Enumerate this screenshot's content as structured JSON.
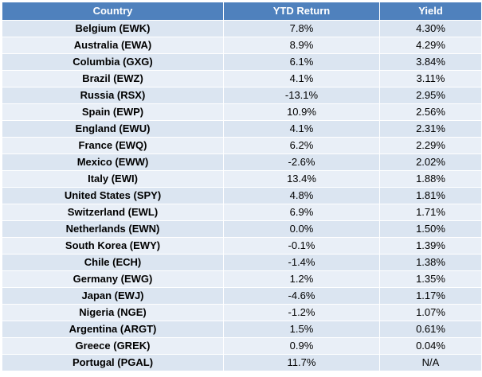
{
  "chart_data": {
    "type": "table",
    "columns": [
      "Country",
      "YTD Return",
      "Yield"
    ],
    "rows": [
      [
        "Belgium (EWK)",
        "7.8%",
        "4.30%"
      ],
      [
        "Australia (EWA)",
        "8.9%",
        "4.29%"
      ],
      [
        "Columbia (GXG)",
        "6.1%",
        "3.84%"
      ],
      [
        "Brazil (EWZ)",
        "4.1%",
        "3.11%"
      ],
      [
        "Russia (RSX)",
        "-13.1%",
        "2.95%"
      ],
      [
        "Spain (EWP)",
        "10.9%",
        "2.56%"
      ],
      [
        "England (EWU)",
        "4.1%",
        "2.31%"
      ],
      [
        "France (EWQ)",
        "6.2%",
        "2.29%"
      ],
      [
        "Mexico (EWW)",
        "-2.6%",
        "2.02%"
      ],
      [
        "Italy (EWI)",
        "13.4%",
        "1.88%"
      ],
      [
        "United States (SPY)",
        "4.8%",
        "1.81%"
      ],
      [
        "Switzerland (EWL)",
        "6.9%",
        "1.71%"
      ],
      [
        "Netherlands (EWN)",
        "0.0%",
        "1.50%"
      ],
      [
        "South Korea (EWY)",
        "-0.1%",
        "1.39%"
      ],
      [
        "Chile (ECH)",
        "-1.4%",
        "1.38%"
      ],
      [
        "Germany (EWG)",
        "1.2%",
        "1.35%"
      ],
      [
        "Japan (EWJ)",
        "-4.6%",
        "1.17%"
      ],
      [
        "Nigeria (NGE)",
        "-1.2%",
        "1.07%"
      ],
      [
        "Argentina (ARGT)",
        "1.5%",
        "0.61%"
      ],
      [
        "Greece (GREK)",
        "0.9%",
        "0.04%"
      ],
      [
        "Portugal (PGAL)",
        "11.7%",
        "N/A"
      ]
    ],
    "colors": {
      "header_bg": "#4f81bd",
      "header_text": "#ffffff",
      "row_bg": "#dbe5f1",
      "row_alt_bg": "#e9eff7"
    }
  }
}
